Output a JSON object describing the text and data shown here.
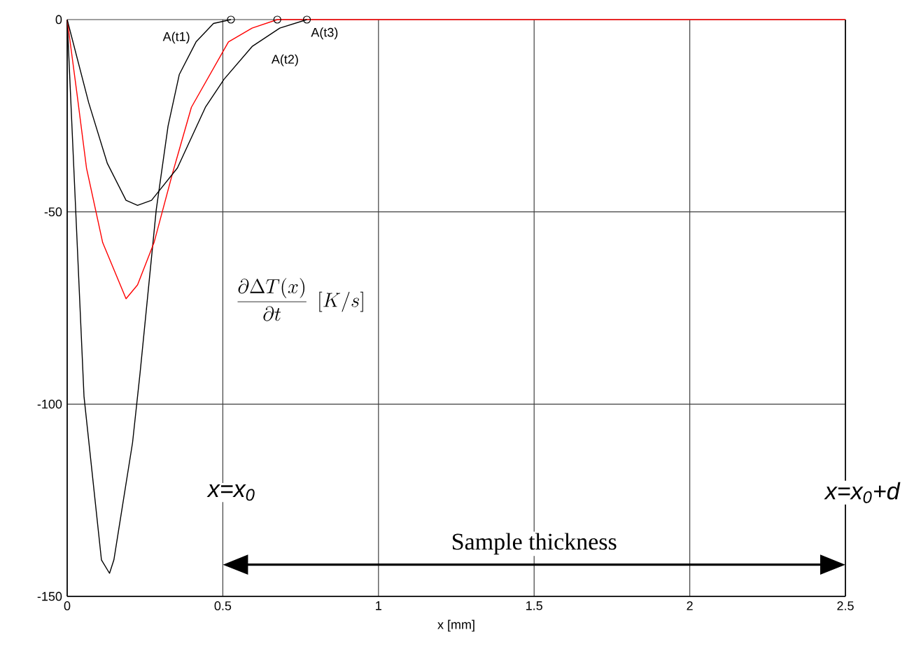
{
  "chart_data": {
    "type": "line",
    "xlabel": "x [mm]",
    "xlim": [
      0,
      2.5
    ],
    "ylim": [
      -150,
      0
    ],
    "xticks": [
      0,
      0.5,
      1,
      1.5,
      2,
      2.5
    ],
    "yticks": [
      -150,
      -100,
      -50,
      0
    ],
    "grid": true,
    "marker": "none",
    "line_style": "solid",
    "series": [
      {
        "color": "#000000",
        "x": [
          0,
          0.054,
          0.11,
          0.136,
          0.15,
          0.21,
          0.234,
          0.286,
          0.324,
          0.36,
          0.414,
          0.47,
          0.526
        ],
        "values": [
          0,
          -98,
          -140.5,
          -144,
          -140.5,
          -110,
          -92,
          -49.5,
          -27.7,
          -14.3,
          -5.8,
          -1,
          0
        ]
      },
      {
        "color": "#ff0000",
        "x": [
          0,
          0.031,
          0.062,
          0.114,
          0.189,
          0.226,
          0.279,
          0.339,
          0.399,
          0.518,
          0.594,
          0.675,
          2.5
        ],
        "values": [
          0,
          -19,
          -38.6,
          -58,
          -72.6,
          -69,
          -58,
          -39.8,
          -22.8,
          -5.8,
          -2.2,
          0,
          0
        ]
      },
      {
        "color": "#000000",
        "x": [
          0,
          0.069,
          0.129,
          0.189,
          0.226,
          0.271,
          0.354,
          0.444,
          0.504,
          0.594,
          0.683,
          0.77
        ],
        "values": [
          0,
          -21.6,
          -37.4,
          -47,
          -48.3,
          -47,
          -38.6,
          -22.8,
          -15.5,
          -7,
          -2.2,
          0
        ]
      },
      {
        "type": "scatter",
        "marker": "circle",
        "color": "#000000",
        "x": [
          0.526,
          0.675,
          0.77
        ],
        "values": [
          0,
          0,
          0
        ]
      }
    ],
    "annotations": [
      "\\frac{\\partial \\Delta T(x)}{\\partial t}\\;\\left[K/s\\right]",
      {
        "text": "A(t1)",
        "x": 0.351,
        "y": -4.7
      },
      {
        "text": "A(t2)",
        "x": 0.7,
        "y": -10.6
      },
      {
        "text": "A(t3)",
        "x": 0.827,
        "y": -3.6
      },
      "x=x$_{0}$",
      "x=x$_{0}$+d",
      "Sample thickness"
    ]
  }
}
